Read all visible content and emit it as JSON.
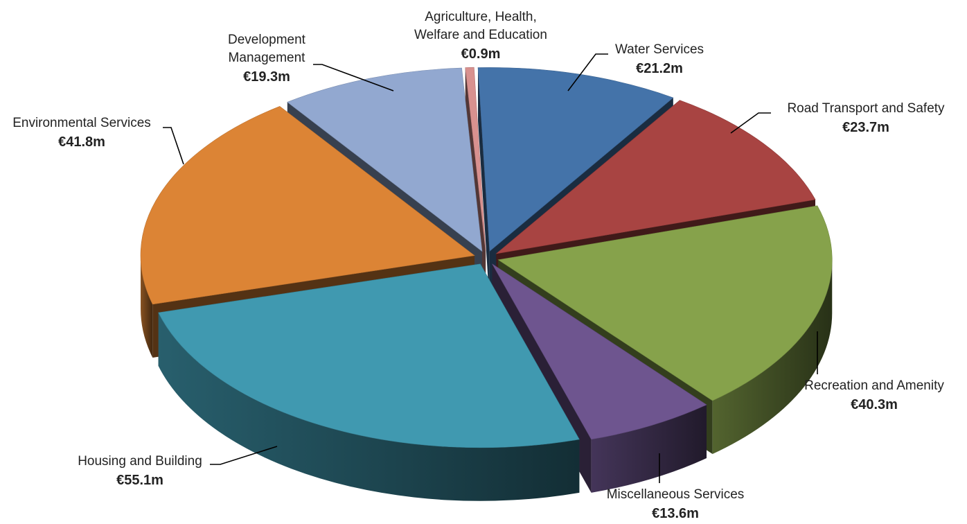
{
  "chart_data": {
    "type": "pie",
    "title": "",
    "unit": "€m",
    "slices": [
      {
        "name_lines": [
          "Water Services"
        ],
        "value": 21.2,
        "value_label": "€21.2m",
        "color": "#4473a9"
      },
      {
        "name_lines": [
          "Road Transport and Safety"
        ],
        "value": 23.7,
        "value_label": "€23.7m",
        "color": "#a84442"
      },
      {
        "name_lines": [
          "Recreation and Amenity"
        ],
        "value": 40.3,
        "value_label": "€40.3m",
        "color": "#86a24b"
      },
      {
        "name_lines": [
          "Miscellaneous Services"
        ],
        "value": 13.6,
        "value_label": "€13.6m",
        "color": "#6e558f"
      },
      {
        "name_lines": [
          "Housing and Building"
        ],
        "value": 55.1,
        "value_label": "€55.1m",
        "color": "#4099b0"
      },
      {
        "name_lines": [
          "Environmental Services"
        ],
        "value": 41.8,
        "value_label": "€41.8m",
        "color": "#dc8435"
      },
      {
        "name_lines": [
          "Development",
          "Management"
        ],
        "value": 19.3,
        "value_label": "€19.3m",
        "color": "#92a8d0"
      },
      {
        "name_lines": [
          "Agriculture, Health,",
          "Welfare and Education"
        ],
        "value": 0.9,
        "value_label": "€0.9m",
        "color": "#d8918f"
      }
    ]
  }
}
